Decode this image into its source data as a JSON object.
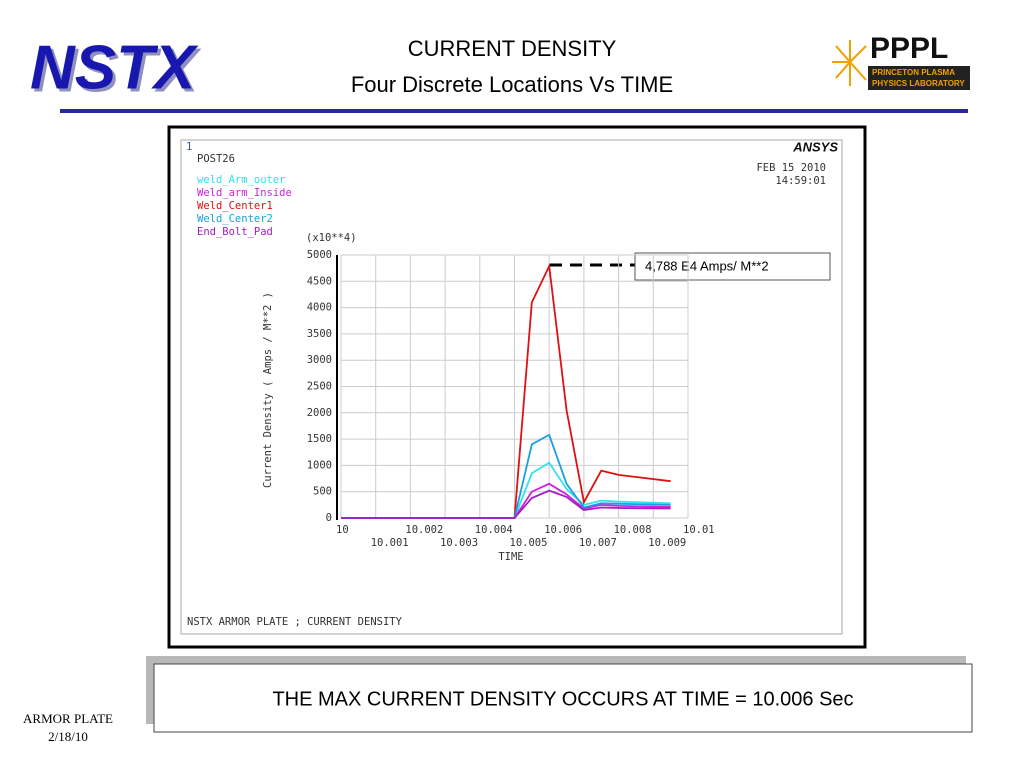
{
  "slide": {
    "logo": "NSTX",
    "title": "CURRENT DENSITY",
    "subtitle": "Four Discrete Locations Vs TIME",
    "lab_logo": "PPPL",
    "lab_line1": "PRINCETON PLASMA",
    "lab_line2": "PHYSICS LABORATORY",
    "conclusion": "THE MAX CURRENT DENSITY OCCURS AT TIME = 10.006 Sec",
    "footer_title": "ARMOR  PLATE",
    "footer_date": "2/18/10"
  },
  "chart_data": {
    "type": "line",
    "title": "NSTX ARMOR PLATE ; CURRENT DENSITY",
    "window": "1",
    "software": "ANSYS",
    "program": "POST26",
    "date": "FEB 15 2010",
    "time": "14:59:01",
    "y_multiplier": "(x10**4)",
    "xlabel": "TIME",
    "ylabel": "Current Density ( Amps / M**2 )",
    "annotation": "4,788 E4 Amps/ M**2",
    "x": [
      10,
      10.001,
      10.002,
      10.003,
      10.004,
      10.005,
      10.0055,
      10.006,
      10.0065,
      10.007,
      10.0075,
      10.008,
      10.0095
    ],
    "series": [
      {
        "name": "weld_Arm_outer",
        "color": "#33e0f0",
        "values": [
          0,
          0,
          0,
          0,
          0,
          0,
          850,
          1050,
          550,
          250,
          330,
          310,
          280
        ]
      },
      {
        "name": "Weld_arm_Inside",
        "color": "#d020e0",
        "values": [
          0,
          0,
          0,
          0,
          0,
          0,
          500,
          650,
          450,
          180,
          250,
          230,
          210
        ]
      },
      {
        "name": "Weld_Center1",
        "color": "#e01010",
        "values": [
          0,
          0,
          0,
          0,
          0,
          0,
          4100,
          4788,
          2050,
          300,
          900,
          820,
          700
        ]
      },
      {
        "name": "Weld_Center2",
        "color": "#1aa0e0",
        "values": [
          0,
          0,
          0,
          0,
          0,
          0,
          1400,
          1580,
          650,
          200,
          280,
          270,
          250
        ]
      },
      {
        "name": "End_Bolt_Pad",
        "color": "#a020c0",
        "values": [
          0,
          0,
          0,
          0,
          0,
          0,
          380,
          520,
          400,
          150,
          200,
          190,
          180
        ]
      }
    ],
    "xlim": [
      10,
      10.01
    ],
    "xticks": [
      10,
      10.001,
      10.002,
      10.003,
      10.004,
      10.005,
      10.006,
      10.007,
      10.008,
      10.009,
      10.01
    ],
    "ylim": [
      0,
      5000
    ],
    "yticks": [
      0,
      500,
      1000,
      1500,
      2000,
      2500,
      3000,
      3500,
      4000,
      4500,
      5000
    ],
    "grid": true
  }
}
